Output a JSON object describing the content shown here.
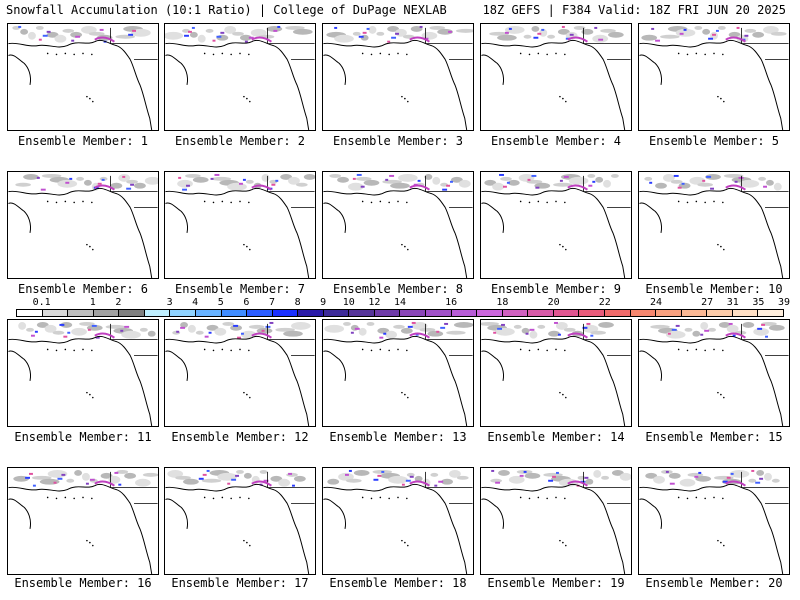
{
  "header": {
    "title_left": "Snowfall Accumulation (10:1 Ratio) | College of DuPage NEXLAB",
    "title_right": "18Z GEFS | F384 Valid: 18Z FRI JUN 20 2025"
  },
  "members": [
    {
      "label": "Ensemble Member: 1"
    },
    {
      "label": "Ensemble Member: 2"
    },
    {
      "label": "Ensemble Member: 3"
    },
    {
      "label": "Ensemble Member: 4"
    },
    {
      "label": "Ensemble Member: 5"
    },
    {
      "label": "Ensemble Member: 6"
    },
    {
      "label": "Ensemble Member: 7"
    },
    {
      "label": "Ensemble Member: 8"
    },
    {
      "label": "Ensemble Member: 9"
    },
    {
      "label": "Ensemble Member: 10"
    },
    {
      "label": "Ensemble Member: 11"
    },
    {
      "label": "Ensemble Member: 12"
    },
    {
      "label": "Ensemble Member: 13"
    },
    {
      "label": "Ensemble Member: 14"
    },
    {
      "label": "Ensemble Member: 15"
    },
    {
      "label": "Ensemble Member: 16"
    },
    {
      "label": "Ensemble Member: 17"
    },
    {
      "label": "Ensemble Member: 18"
    },
    {
      "label": "Ensemble Member: 19"
    },
    {
      "label": "Ensemble Member: 20"
    }
  ],
  "colorbar": {
    "labels": [
      "0.1",
      "1",
      "2",
      "3",
      "4",
      "5",
      "6",
      "7",
      "8",
      "9",
      "10",
      "12",
      "14",
      "16",
      "18",
      "20",
      "22",
      "24",
      "27",
      "31",
      "35",
      "39"
    ],
    "colors": [
      "#ffffff",
      "#d9d9d9",
      "#bdbdbd",
      "#a0a0a0",
      "#7f7f7f",
      "#bfefff",
      "#8fd3ff",
      "#66b2ff",
      "#3f8cff",
      "#2a5cff",
      "#1a2fff",
      "#2a1aa8",
      "#3d2a99",
      "#553399",
      "#6e3aa8",
      "#8a45b8",
      "#a050c8",
      "#b85cd8",
      "#cc66dd",
      "#d060c0",
      "#d85aa8",
      "#e05590",
      "#e85a7a",
      "#f06a6a",
      "#f5866e",
      "#f8a07e",
      "#fbb894",
      "#fdccaa",
      "#ffdfc4",
      "#ffeedd"
    ]
  }
}
